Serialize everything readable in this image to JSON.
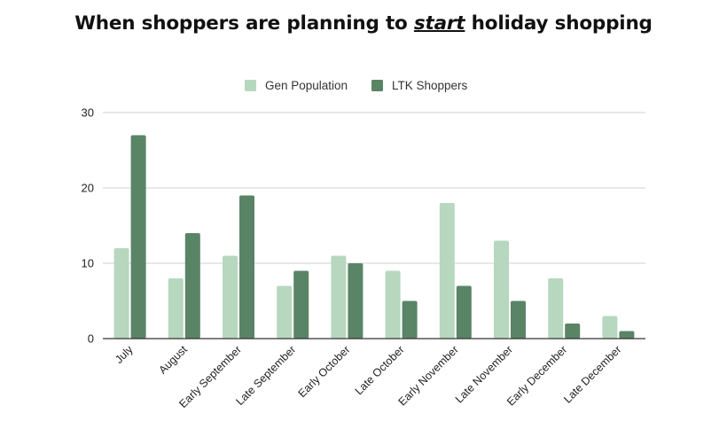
{
  "chart_data": {
    "type": "bar",
    "title_pre": "When shoppers are planning to ",
    "title_em": "start",
    "title_post": " holiday shopping",
    "categories": [
      "July",
      "August",
      "Early September",
      "Late September",
      "Early October",
      "Late October",
      "Early November",
      "Late November",
      "Early December",
      "Late December"
    ],
    "series": [
      {
        "name": "Gen Population",
        "color": "#b7d7bf",
        "values": [
          12,
          8,
          11,
          7,
          11,
          9,
          18,
          13,
          8,
          3
        ]
      },
      {
        "name": "LTK Shoppers",
        "color": "#5a8466",
        "values": [
          27,
          14,
          19,
          9,
          10,
          5,
          7,
          5,
          2,
          1
        ]
      }
    ],
    "ylim": [
      0,
      30
    ],
    "yticks": [
      0,
      10,
      20,
      30
    ],
    "grid": true,
    "legend_position": "top-center",
    "xlabel": "",
    "ylabel": ""
  }
}
